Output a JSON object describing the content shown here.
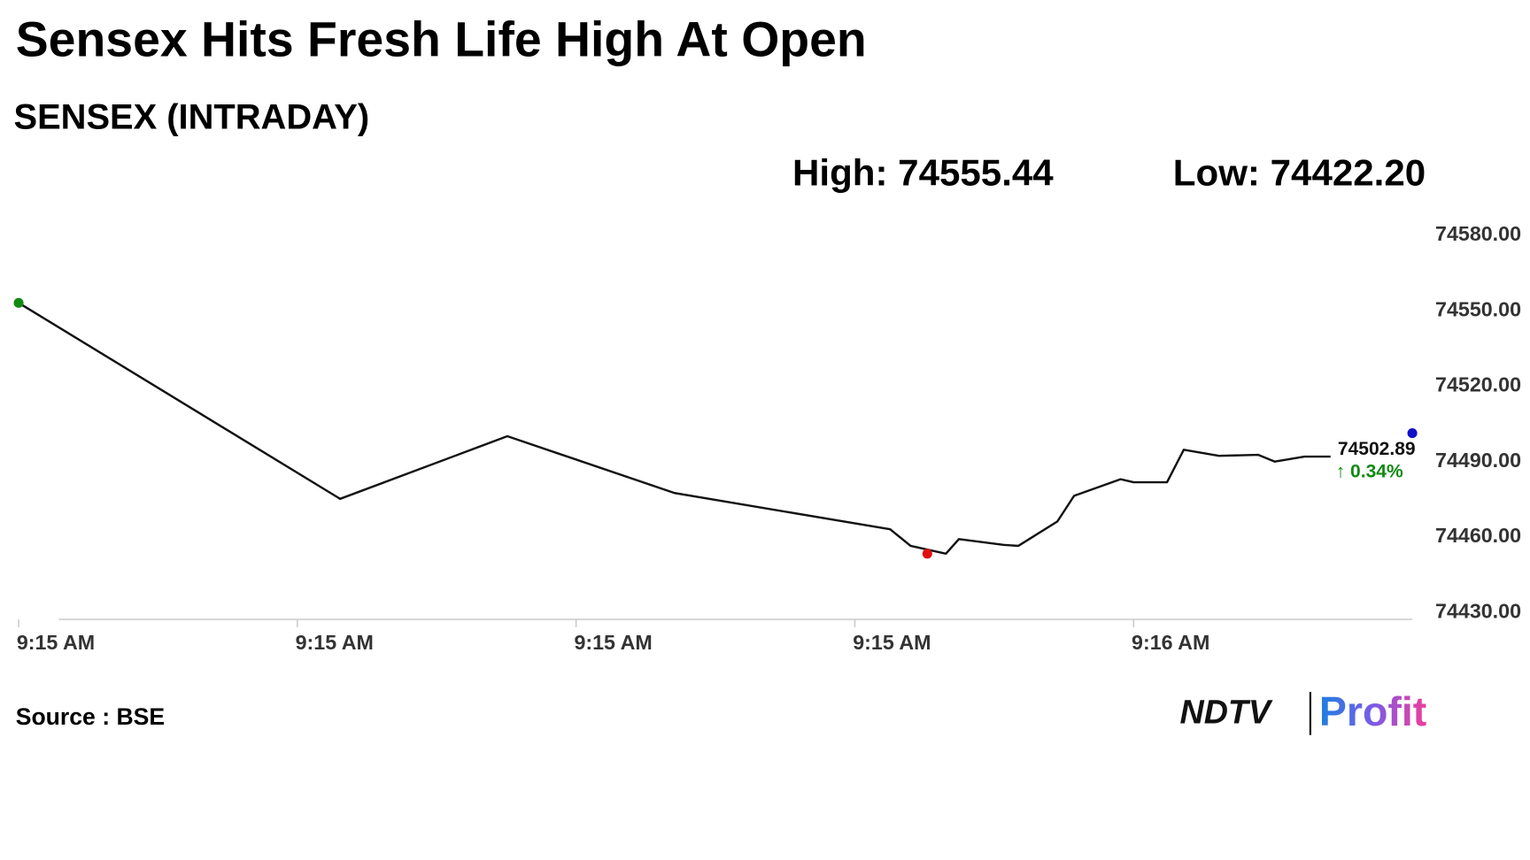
{
  "chart_data": {
    "type": "line",
    "title": "Sensex Hits Fresh Life High At Open",
    "subtitle": "SENSEX (INTRADAY)",
    "high_label": "High: 74555.44",
    "low_label": "Low: 74422.20",
    "last_value_label": "74502.89",
    "change_label": "↑ 0.34%",
    "change_color": "#118a11",
    "source": "Source : BSE",
    "logo": {
      "brand": "NDTV",
      "product": "Profit"
    },
    "x": [
      0,
      17.3,
      26.3,
      35.3,
      46.9,
      48.0,
      49.9,
      50.6,
      53.0,
      53.8,
      55.9,
      56.8,
      59.3,
      60.0,
      61.8,
      62.7,
      64.6,
      66.7,
      67.6,
      69.2,
      70.6
    ],
    "series": [
      {
        "color": "#111111",
        "values": [
          74553.1,
          74475.2,
          74500.1,
          74477.5,
          74463.1,
          74456.5,
          74453.4,
          74459.2,
          74456.9,
          74456.5,
          74466.2,
          74476.4,
          74483.0,
          74481.8,
          74481.8,
          74494.7,
          74492.3,
          74492.7,
          74490.0,
          74492.0,
          74492.0
        ]
      }
    ],
    "markers": [
      {
        "x": 0,
        "y": 74553.1,
        "color": "#138a13"
      },
      {
        "x": 48.9,
        "y": 74453.4,
        "color": "#e01010"
      },
      {
        "x": 75,
        "y": 74501.3,
        "color": "#1010c8"
      }
    ],
    "xlim": [
      0,
      75
    ],
    "xticks": [
      {
        "value": 0,
        "label": "9:15 AM"
      },
      {
        "value": 15,
        "label": "9:15 AM"
      },
      {
        "value": 30,
        "label": "9:15 AM"
      },
      {
        "value": 45,
        "label": "9:15 AM"
      },
      {
        "value": 60,
        "label": "9:16 AM"
      }
    ],
    "ylim": [
      74430,
      74580
    ],
    "yticks": [
      {
        "value": 74580,
        "label": "74580.00"
      },
      {
        "value": 74550,
        "label": "74550.00"
      },
      {
        "value": 74520,
        "label": "74520.00"
      },
      {
        "value": 74490,
        "label": "74490.00"
      },
      {
        "value": 74460,
        "label": "74460.00"
      },
      {
        "value": 74430,
        "label": "74430.00"
      }
    ]
  }
}
